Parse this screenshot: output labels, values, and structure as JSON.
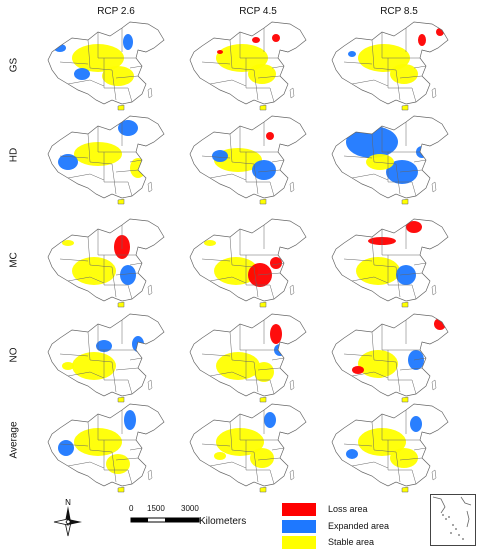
{
  "columns": [
    "RCP 2.6",
    "RCP 4.5",
    "RCP 8.5"
  ],
  "rows": [
    "GS",
    "HD",
    "MC",
    "NO",
    "Average"
  ],
  "legend": [
    {
      "label": "Loss area",
      "color": "#ff0000"
    },
    {
      "label": "Expanded area",
      "color": "#1e78ff"
    },
    {
      "label": "Stable area",
      "color": "#ffff00"
    }
  ],
  "scale": {
    "ticks": [
      "0",
      "1500",
      "3000"
    ],
    "units": "Kilometers"
  },
  "north_label": "N",
  "colors": {
    "land": "#ffffff",
    "border": "#666666",
    "loss": "#ff0000",
    "expanded": "#1e78ff",
    "stable": "#ffff00"
  }
}
